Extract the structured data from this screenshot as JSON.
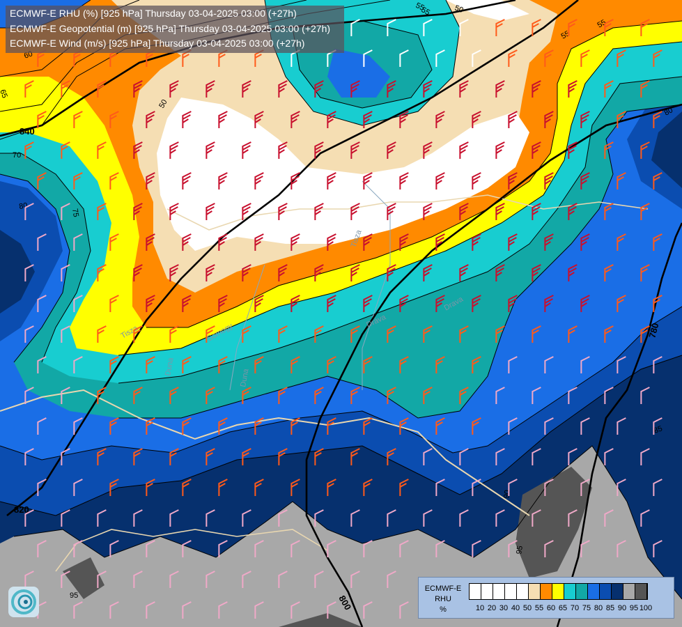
{
  "header": {
    "line1": "ECMWF-E RHU (%) [925 hPa] Thursday 03-04-2025 03:00 (+27h)",
    "line2": "ECMWF-E Geopotential (m) [925 hPa] Thursday 03-04-2025 03:00 (+27h)",
    "line3": "ECMWF-E Wind (m/s) [925 hPa] Thursday 03-04-2025 03:00 (+27h)"
  },
  "legend": {
    "title_line1": "ECMWF-E",
    "title_line2": "RHU",
    "unit": "%",
    "swatches": [
      "#ffffff",
      "#ffffff",
      "#ffffff",
      "#ffffff",
      "#ffffff",
      "#f5deb3",
      "#ff8a00",
      "#ffff00",
      "#18cdd0",
      "#12a8a6",
      "#1a6ee6",
      "#0b4db0",
      "#06306e",
      "#a8a8a8",
      "#555555"
    ],
    "ticks": [
      "10",
      "20",
      "30",
      "40",
      "50",
      "55",
      "60",
      "65",
      "70",
      "75",
      "80",
      "85",
      "90",
      "95",
      "100"
    ]
  },
  "geopotential_labels": [
    "840",
    "820",
    "800",
    "780"
  ],
  "rhu_contour_labels": [
    "55",
    "60",
    "50",
    "55",
    "65",
    "70",
    "75",
    "80",
    "85",
    "90",
    "95",
    "50",
    "55",
    "55",
    "80",
    "95"
  ],
  "place_labels": [
    "Tisza",
    "Somogy",
    "Duna",
    "Tisza",
    "Dráva",
    "Drava",
    "Duna"
  ],
  "colors": {
    "rhu_white": "#ffffff",
    "rhu_wheat": "#f5deb3",
    "rhu_orange": "#ff8a00",
    "rhu_yellow": "#ffff00",
    "rhu_cyan": "#18cdd0",
    "rhu_teal": "#12a8a6",
    "rhu_blue": "#1a6ee6",
    "rhu_darkblue": "#0b4db0",
    "rhu_navy": "#06306e",
    "rhu_grey": "#a8a8a8",
    "rhu_darkgrey": "#555555",
    "wind_red": "#c8102e",
    "wind_orange": "#ff5a1a",
    "wind_pink": "#f0a9c8",
    "wind_white": "#ffffff"
  }
}
